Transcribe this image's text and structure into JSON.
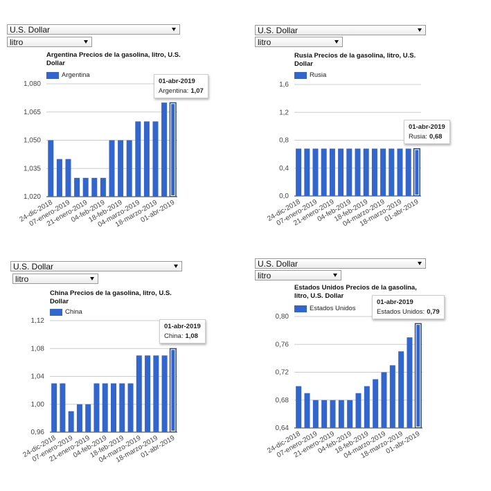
{
  "charts": [
    {
      "controls": [
        "U.S. Dollar",
        "litro"
      ],
      "chart_data": {
        "type": "bar",
        "title": "Argentina Precios de la gasolina, litro, U.S. Dollar",
        "categories": [
          "24-dic-2018",
          null,
          "07-enero-2019",
          null,
          "21-enero-2019",
          null,
          "04-feb-2019",
          null,
          "18-feb-2019",
          null,
          "04-marzo-2019",
          null,
          "18-marzo-2019",
          null,
          "01-abr-2019"
        ],
        "series": [
          {
            "name": "Argentina",
            "color": "#3366cc",
            "values": [
              1.05,
              1.04,
              1.04,
              1.03,
              1.03,
              1.03,
              1.03,
              1.05,
              1.05,
              1.05,
              1.06,
              1.06,
              1.06,
              1.07,
              1.07
            ],
            "value_labels": [
              null,
              null,
              null,
              null,
              null,
              null,
              null,
              null,
              null,
              null,
              null,
              null,
              null,
              null,
              "1,07"
            ]
          }
        ],
        "tooltip": {
          "label": "Argentina:"
        },
        "ylim": [
          1.02,
          1.08
        ],
        "yticks": [
          {
            "value": 1.02,
            "label": "1,020"
          },
          {
            "value": 1.035,
            "label": "1,035"
          },
          {
            "value": 1.05,
            "label": "1,050"
          },
          {
            "value": 1.065,
            "label": "1,065"
          },
          {
            "value": 1.08,
            "label": "1,080"
          }
        ],
        "grid": true,
        "legend": "top"
      }
    },
    {
      "controls": [
        "U.S. Dollar",
        "litro"
      ],
      "chart_data": {
        "type": "bar",
        "title": "Rusia Precios de la gasolina, litro, U.S. Dollar",
        "categories": [
          "24-dic-2018",
          null,
          "07-enero-2019",
          null,
          "21-enero-2019",
          null,
          "04-feb-2019",
          null,
          "18-feb-2019",
          null,
          "04-marzo-2019",
          null,
          "18-marzo-2019",
          null,
          "01-abr-2019"
        ],
        "series": [
          {
            "name": "Rusia",
            "color": "#3366cc",
            "values": [
              0.68,
              0.68,
              0.68,
              0.68,
              0.68,
              0.68,
              0.68,
              0.68,
              0.68,
              0.68,
              0.68,
              0.68,
              0.68,
              0.68,
              0.68
            ],
            "value_labels": [
              null,
              null,
              null,
              null,
              null,
              null,
              null,
              null,
              null,
              null,
              null,
              null,
              null,
              null,
              "0,68"
            ]
          }
        ],
        "tooltip": {
          "label": "Rusia:"
        },
        "ylim": [
          0,
          1.6
        ],
        "yticks": [
          {
            "value": 0,
            "label": "0,0"
          },
          {
            "value": 0.4,
            "label": "0,4"
          },
          {
            "value": 0.8,
            "label": "0,8"
          },
          {
            "value": 1.2,
            "label": "1,2"
          },
          {
            "value": 1.6,
            "label": "1,6"
          }
        ],
        "grid": true,
        "legend": "top"
      }
    },
    {
      "controls": [
        "U.S. Dollar",
        "litro"
      ],
      "chart_data": {
        "type": "bar",
        "title": "China Precios de la gasolina, litro, U.S. Dollar",
        "categories": [
          "24-dic-2018",
          null,
          "07-enero-2019",
          null,
          "21-enero-2019",
          null,
          "04-feb-2019",
          null,
          "18-feb-2019",
          null,
          "04-marzo-2019",
          null,
          "18-marzo-2019",
          null,
          "01-abr-2019"
        ],
        "series": [
          {
            "name": "China",
            "color": "#3366cc",
            "values": [
              1.03,
              1.03,
              0.99,
              1.0,
              1.0,
              1.03,
              1.03,
              1.03,
              1.03,
              1.03,
              1.07,
              1.07,
              1.07,
              1.07,
              1.08
            ],
            "value_labels": [
              null,
              null,
              null,
              null,
              null,
              null,
              null,
              null,
              null,
              null,
              null,
              null,
              null,
              null,
              "1,08"
            ]
          }
        ],
        "tooltip": {
          "label": "China:"
        },
        "ylim": [
          0.96,
          1.12
        ],
        "yticks": [
          {
            "value": 0.96,
            "label": "0,96"
          },
          {
            "value": 1.0,
            "label": "1,00"
          },
          {
            "value": 1.04,
            "label": "1,04"
          },
          {
            "value": 1.08,
            "label": "1,08"
          },
          {
            "value": 1.12,
            "label": "1,12"
          }
        ],
        "grid": true,
        "legend": "top"
      }
    },
    {
      "controls": [
        "U.S. Dollar",
        "litro"
      ],
      "chart_data": {
        "type": "bar",
        "title": "Estados Unidos Precios de la gasolina, litro, U.S. Dollar",
        "categories": [
          "24-dic-2018",
          null,
          "07-enero-2019",
          null,
          "21-enero-2019",
          null,
          "04-feb-2019",
          null,
          "18-feb-2019",
          null,
          "04-marzo-2019",
          null,
          "18-marzo-2019",
          null,
          "01-abr-2019"
        ],
        "series": [
          {
            "name": "Estados Unidos",
            "color": "#3366cc",
            "values": [
              0.7,
              0.69,
              0.68,
              0.68,
              0.68,
              0.68,
              0.68,
              0.69,
              0.7,
              0.71,
              0.72,
              0.73,
              0.75,
              0.77,
              0.79
            ],
            "value_labels": [
              null,
              null,
              null,
              null,
              null,
              null,
              null,
              null,
              null,
              null,
              null,
              null,
              null,
              null,
              "0,79"
            ]
          }
        ],
        "tooltip": {
          "label": "Estados Unidos:"
        },
        "ylim": [
          0.64,
          0.8
        ],
        "yticks": [
          {
            "value": 0.64,
            "label": "0,64"
          },
          {
            "value": 0.68,
            "label": "0,68"
          },
          {
            "value": 0.72,
            "label": "0,72"
          },
          {
            "value": 0.76,
            "label": "0,76"
          },
          {
            "value": 0.8,
            "label": "0,80"
          }
        ],
        "grid": true,
        "legend": "top"
      }
    }
  ]
}
